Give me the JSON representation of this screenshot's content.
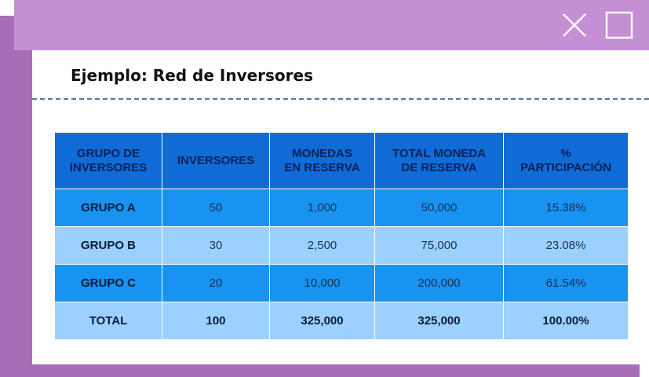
{
  "window": {
    "title": "Ejemplo: Red de Inversores"
  },
  "colors": {
    "titlebar": "#c58fd3",
    "frame": "#a56eb7",
    "header": "#0f6cd6",
    "row_dark": "#1893ef",
    "row_light": "#9cd1ff",
    "divider": "#4d7aa4"
  },
  "icons": {
    "close": "close-icon",
    "maximize": "maximize-icon"
  },
  "table": {
    "headers": [
      [
        "GRUPO DE",
        "INVERSORES"
      ],
      [
        "INVERSORES"
      ],
      [
        "MONEDAS",
        "EN RESERVA"
      ],
      [
        "TOTAL MONEDA",
        "DE RESERVA"
      ],
      [
        "%",
        "PARTICIPACIÓN"
      ]
    ],
    "rows": [
      [
        "GRUPO A",
        "50",
        "1,000",
        "50,000",
        "15.38%"
      ],
      [
        "GRUPO B",
        "30",
        "2,500",
        "75,000",
        "23.08%"
      ],
      [
        "GRUPO C",
        "20",
        "10,000",
        "200,000",
        "61.54%"
      ],
      [
        "TOTAL",
        "100",
        "325,000",
        "325,000",
        "100.00%"
      ]
    ]
  }
}
